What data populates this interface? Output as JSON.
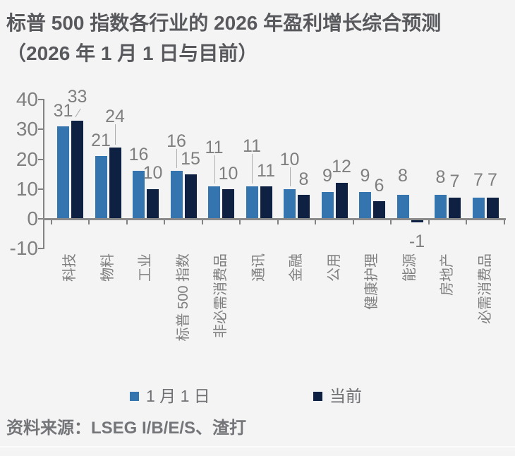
{
  "title": {
    "line1": "标普 500 指数各行业的 2026 年盈利增长综合预测",
    "line2": "（2026 年 1 月 1 日与目前）"
  },
  "chart_data": {
    "type": "bar",
    "title": "标普 500 指数各行业的 2026 年盈利增长综合预测（2026 年 1 月 1 日与目前）",
    "categories": [
      "科技",
      "物料",
      "工业",
      "标普 500 指数",
      "非必需消费品",
      "通讯",
      "金融",
      "公用",
      "健康护理",
      "能源",
      "房地产",
      "必需消费品"
    ],
    "series": [
      {
        "name": "1 月 1 日",
        "color": "#3474af",
        "values": [
          31,
          21,
          16,
          16,
          11,
          11,
          10,
          9,
          9,
          8,
          8,
          7
        ]
      },
      {
        "name": "当前",
        "color": "#0e2142",
        "values": [
          33,
          24,
          10,
          15,
          10,
          11,
          8,
          12,
          6,
          -1,
          7,
          7
        ]
      }
    ],
    "xlabel": "",
    "ylabel": "",
    "yticks": [
      40,
      30,
      20,
      10,
      0,
      -10
    ],
    "ylim": [
      -10,
      40
    ],
    "grid": false,
    "bar_labels": true,
    "legend_position": "bottom",
    "label_layout": {
      "series1_gap": [
        15,
        15,
        16,
        35,
        48,
        50,
        35,
        16,
        16,
        20,
        18,
        18
      ],
      "series1_leader": [
        false,
        false,
        false,
        true,
        true,
        true,
        true,
        false,
        false,
        false,
        false,
        false
      ],
      "series2_gap": [
        27,
        37,
        16,
        15,
        15,
        15,
        15,
        16,
        15,
        14,
        16,
        18
      ],
      "series2_leader": [
        true,
        true,
        false,
        false,
        false,
        false,
        false,
        false,
        false,
        false,
        false,
        false
      ]
    }
  },
  "legend": {
    "items": [
      {
        "label": "1 月 1 日",
        "color": "#3474af"
      },
      {
        "label": "当前",
        "color": "#0e2142"
      }
    ]
  },
  "source": "资料来源：LSEG I/B/E/S、渣打"
}
